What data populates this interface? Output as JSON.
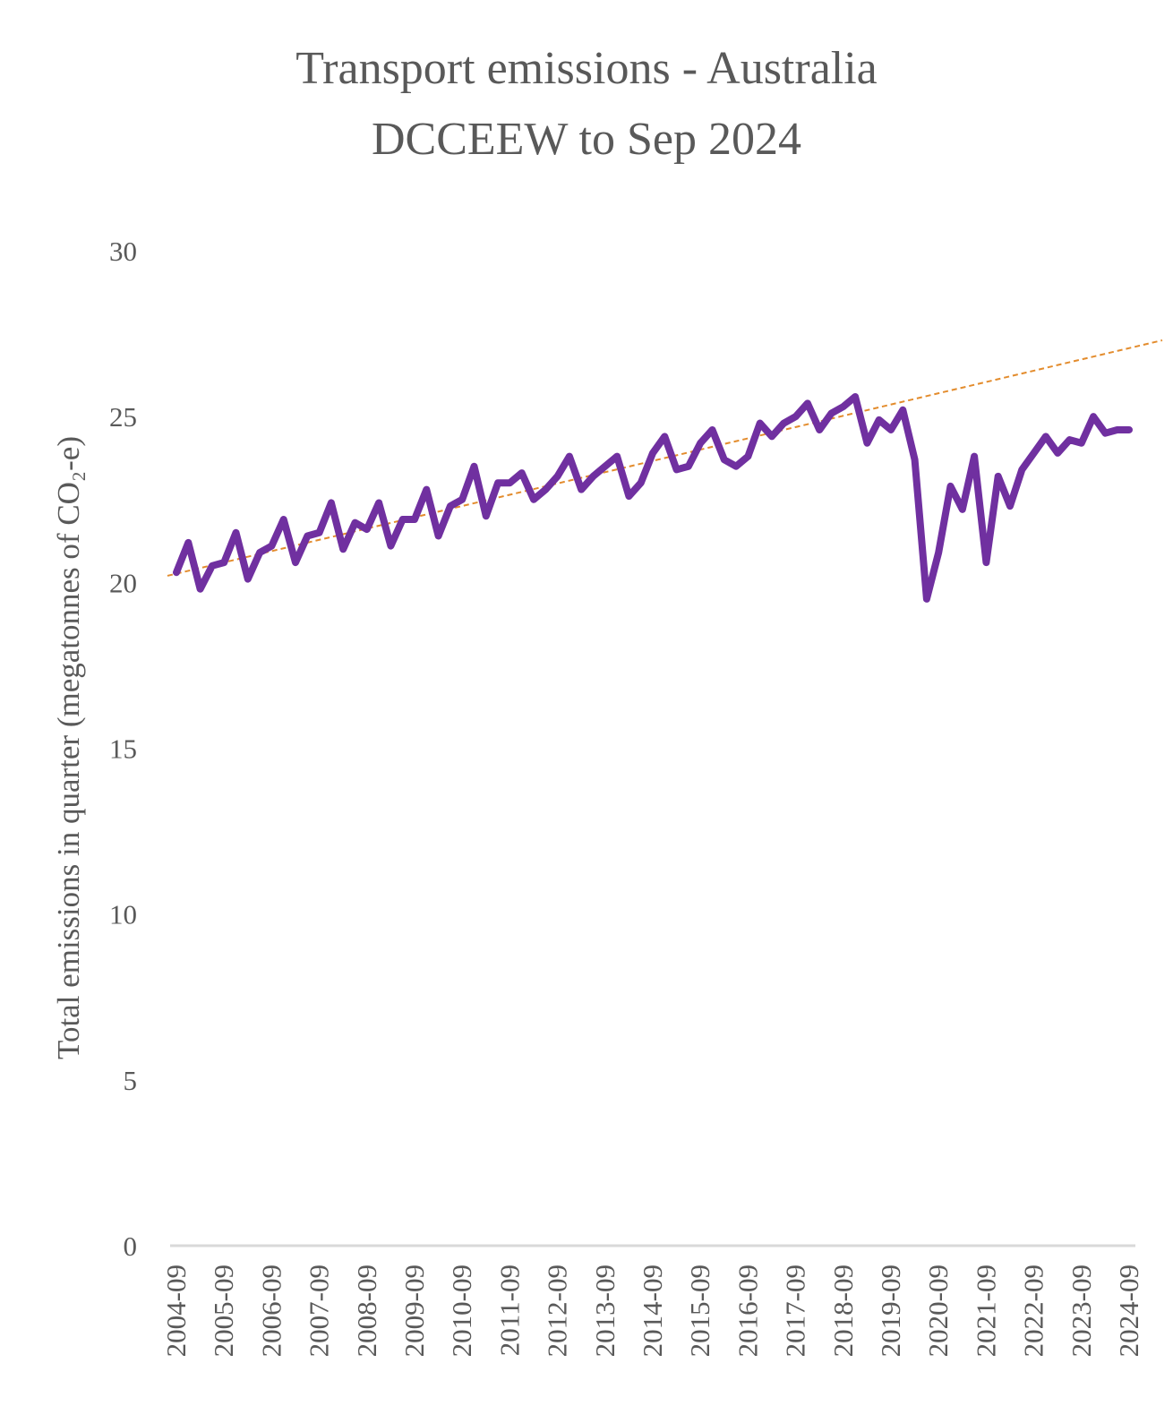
{
  "chart_data": {
    "type": "line",
    "title": "Transport emissions - Australia",
    "subtitle": "DCCEEW to Sep 2024",
    "ylabel": "Total emissions in quarter (megatonnes of CO₂-e)",
    "xlabel": "",
    "ylim": [
      0,
      30
    ],
    "yticks": [
      "0",
      "5",
      "10",
      "15",
      "20",
      "25",
      "30"
    ],
    "xticks": [
      "2004-09",
      "2005-09",
      "2006-09",
      "2007-09",
      "2008-09",
      "2009-09",
      "2010-09",
      "2011-09",
      "2012-09",
      "2013-09",
      "2014-09",
      "2015-09",
      "2016-09",
      "2017-09",
      "2018-09",
      "2019-09",
      "2020-09",
      "2021-09",
      "2022-09",
      "2023-09",
      "2024-09"
    ],
    "x_start": "2004-09",
    "x_end": "2024-09",
    "x_interval": "quarterly",
    "grid": false,
    "legend": "none",
    "series": [
      {
        "color": "#7030a0",
        "style": "solid",
        "values": [
          20.3,
          21.2,
          19.8,
          20.5,
          20.6,
          21.5,
          20.1,
          20.9,
          21.1,
          21.9,
          20.6,
          21.4,
          21.5,
          22.4,
          21.0,
          21.8,
          21.6,
          22.4,
          21.1,
          21.9,
          21.9,
          22.8,
          21.4,
          22.3,
          22.5,
          23.5,
          22.0,
          23.0,
          23.0,
          23.3,
          22.5,
          22.8,
          23.2,
          23.8,
          22.8,
          23.2,
          23.5,
          23.8,
          22.6,
          23.0,
          23.9,
          24.4,
          23.4,
          23.5,
          24.2,
          24.6,
          23.7,
          23.5,
          23.8,
          24.8,
          24.4,
          24.8,
          25.0,
          25.4,
          24.6,
          25.1,
          25.3,
          25.6,
          24.2,
          24.9,
          24.6,
          25.2,
          23.7,
          19.5,
          20.9,
          22.9,
          22.2,
          23.8,
          20.6,
          23.2,
          22.3,
          23.4,
          23.9,
          24.4,
          23.9,
          24.3,
          24.2,
          25.0,
          24.5,
          24.6,
          24.6
        ]
      },
      {
        "color": "#e38c2d",
        "style": "dashed",
        "type": "trendline",
        "start_value": 20.2,
        "end_value": 27.3
      }
    ]
  }
}
